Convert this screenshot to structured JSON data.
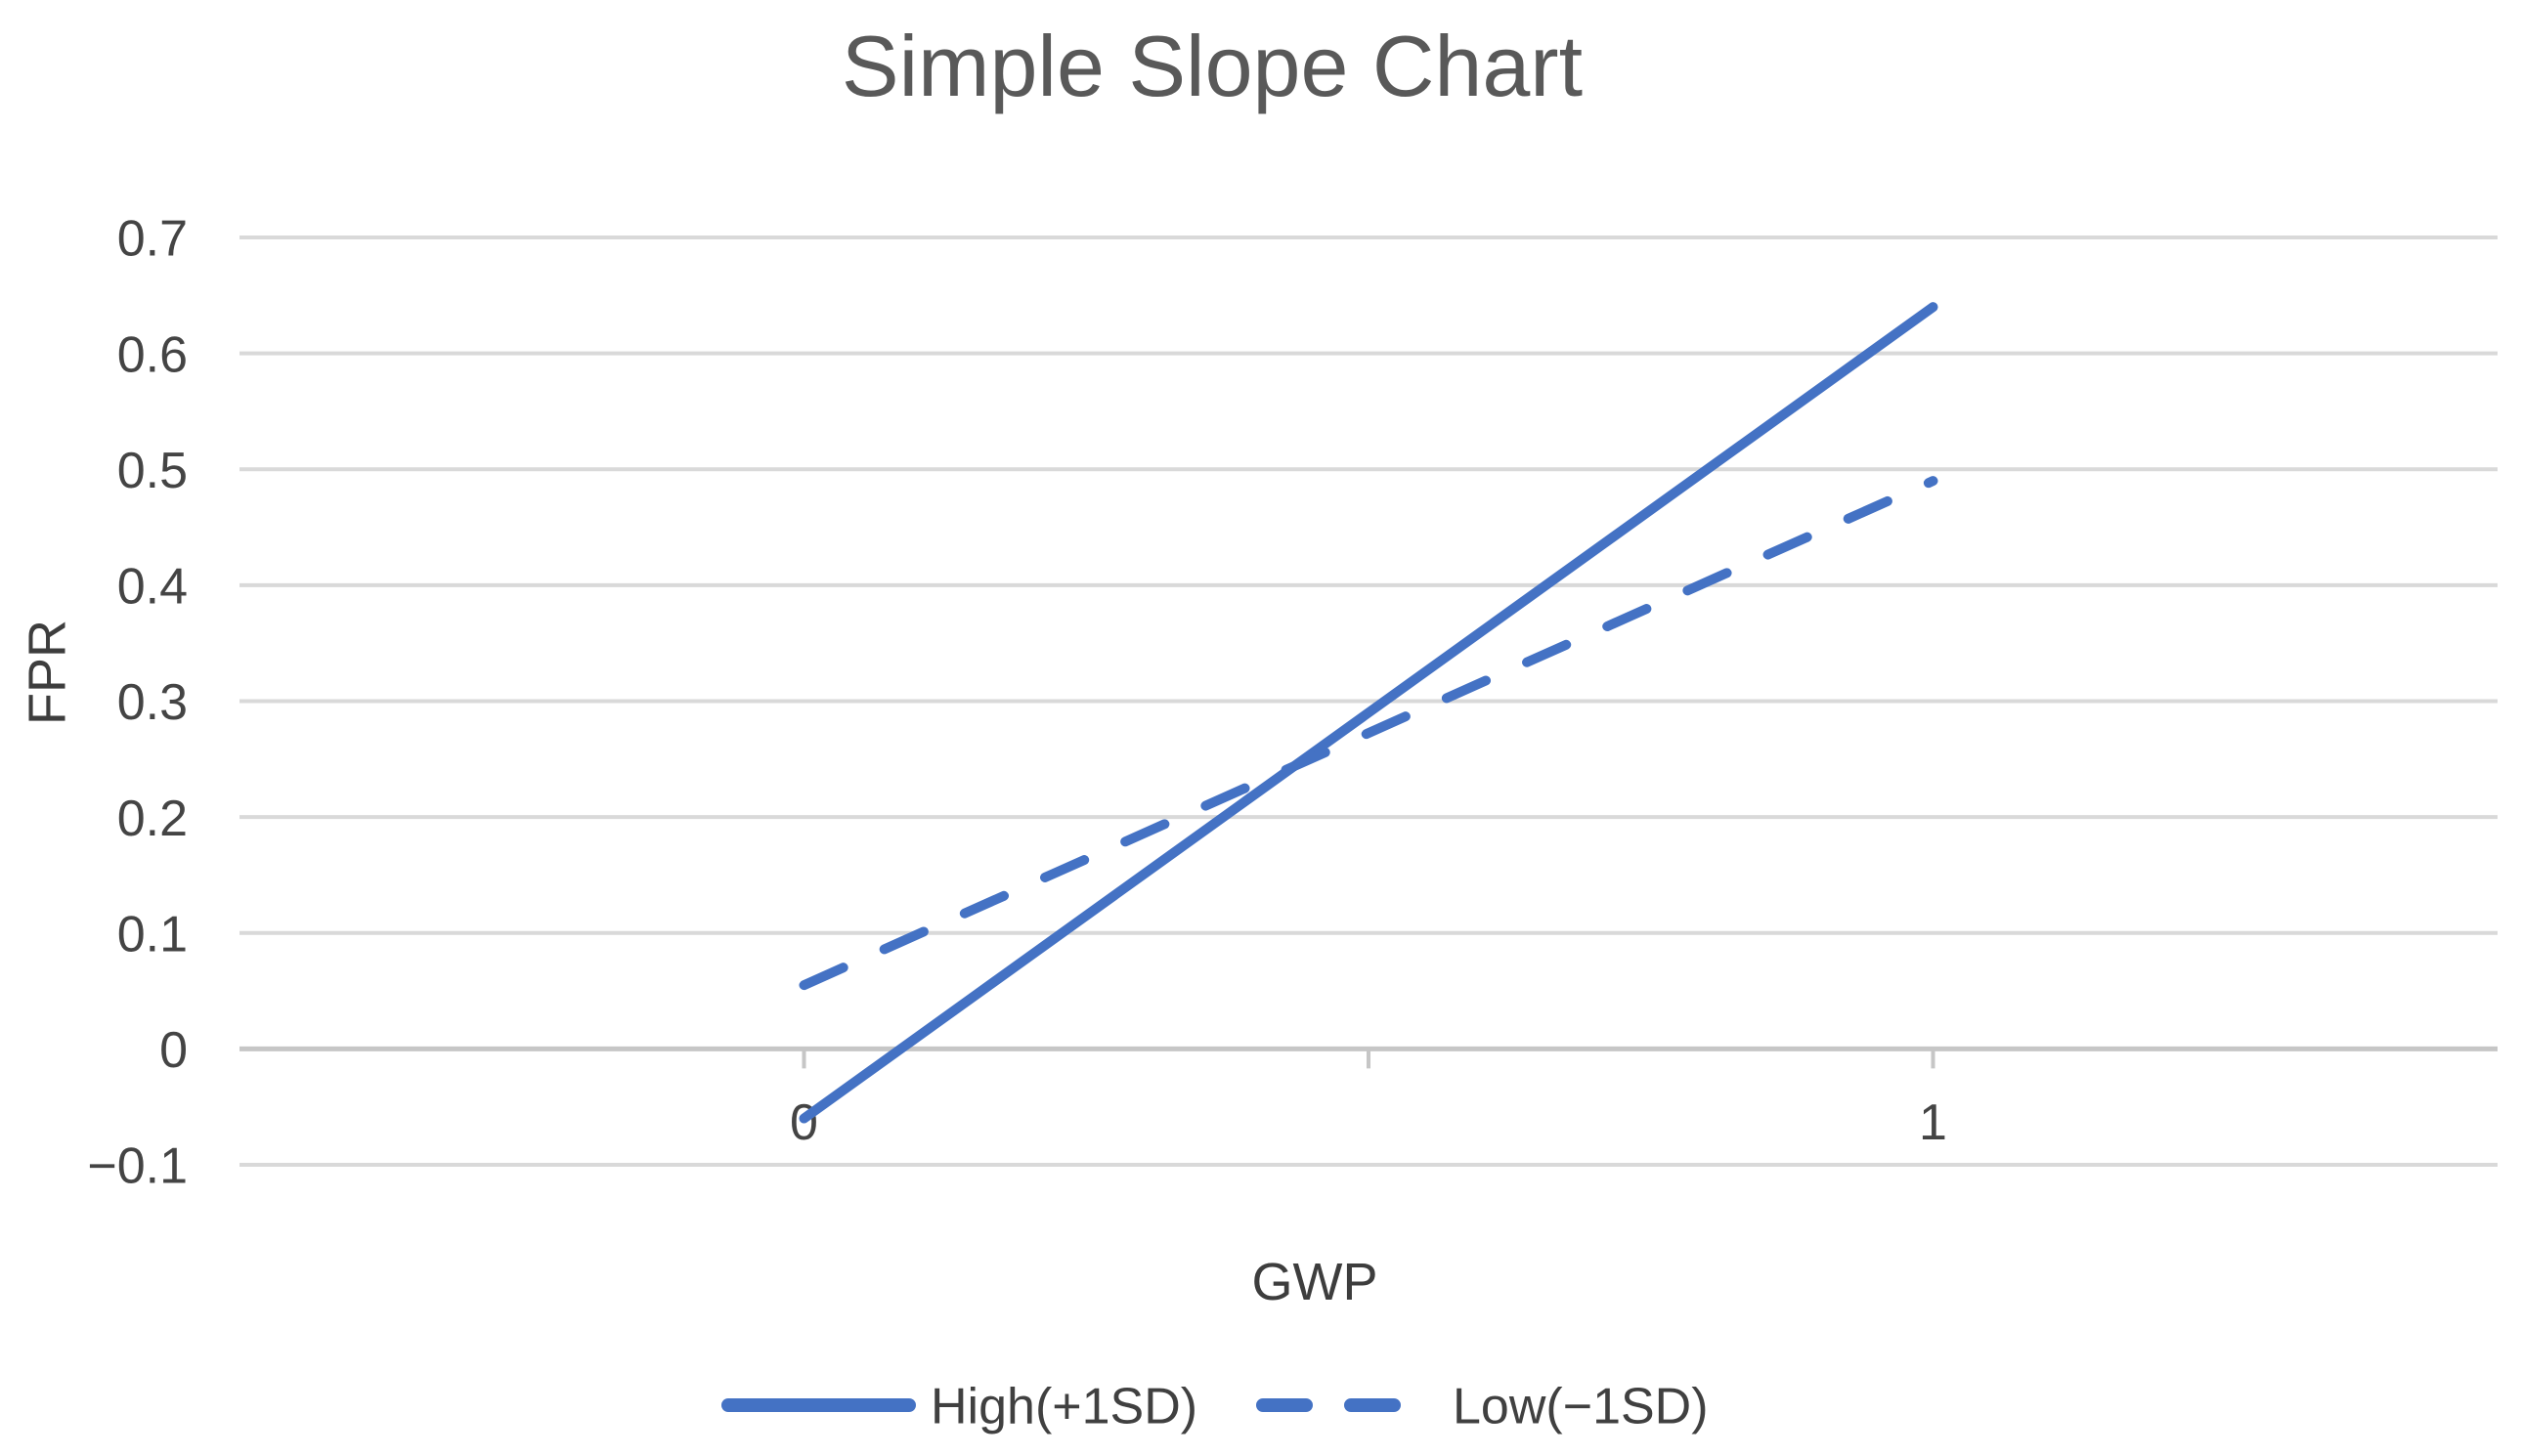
{
  "chart_data": {
    "type": "line",
    "title": "Simple Slope Chart",
    "xlabel": "GWP",
    "ylabel": "FPR",
    "grid": true,
    "legend_position": "bottom",
    "x_axis": {
      "min": -0.5,
      "max": 1.5,
      "ticks": [
        {
          "value": 0,
          "label": "0"
        },
        {
          "value": 0.5,
          "label": ""
        },
        {
          "value": 1,
          "label": "1"
        }
      ]
    },
    "y_axis": {
      "min": -0.1,
      "max": 0.7,
      "ticks": [
        {
          "value": 0.7,
          "label": "0.7"
        },
        {
          "value": 0.6,
          "label": "0.6"
        },
        {
          "value": 0.5,
          "label": "0.5"
        },
        {
          "value": 0.4,
          "label": "0.4"
        },
        {
          "value": 0.3,
          "label": "0.3"
        },
        {
          "value": 0.2,
          "label": "0.2"
        },
        {
          "value": 0.1,
          "label": "0.1"
        },
        {
          "value": 0,
          "label": "0"
        },
        {
          "value": -0.1,
          "label": "−0.1"
        }
      ]
    },
    "series": [
      {
        "name": "High(+1SD)",
        "style": "solid",
        "color": "#4472C4",
        "x": [
          0,
          1
        ],
        "y": [
          -0.06,
          0.64
        ]
      },
      {
        "name": "Low(−1SD)",
        "style": "dashed",
        "color": "#4472C4",
        "x": [
          0,
          1
        ],
        "y": [
          0.055,
          0.49
        ]
      }
    ]
  },
  "colors": {
    "series_blue": "#4472C4",
    "gridline": "#D9D9D9",
    "axis_line": "#C6C6C6",
    "tick_mark": "#C6C6C6",
    "title_text": "#595959",
    "label_text": "#404040"
  }
}
